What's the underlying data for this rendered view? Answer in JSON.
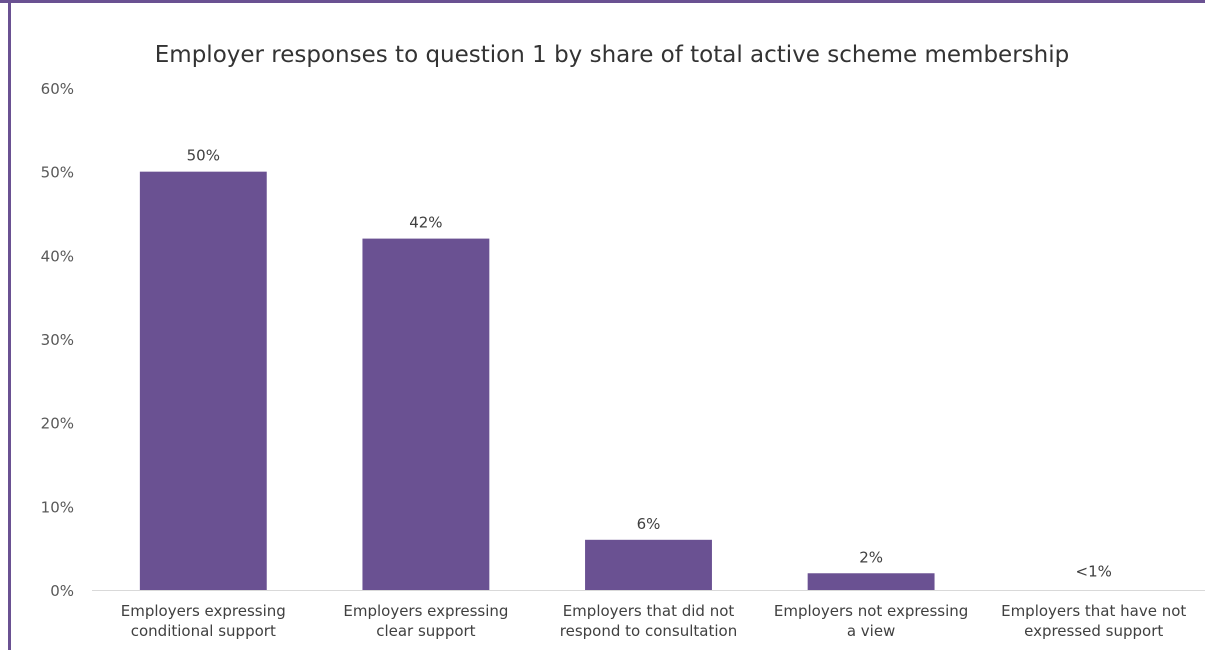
{
  "chart_data": {
    "type": "bar",
    "title": "Employer responses to question 1 by share of total active scheme membership",
    "categories": [
      [
        "Employers expressing",
        "conditional support"
      ],
      [
        "Employers expressing",
        "clear support"
      ],
      [
        "Employers that did not",
        "respond to consultation"
      ],
      [
        "Employers not expressing",
        "a view"
      ],
      [
        "Employers that have not",
        "expressed support"
      ]
    ],
    "values": [
      50,
      42,
      6,
      2,
      0.3
    ],
    "data_labels": [
      "50%",
      "42%",
      "6%",
      "2%",
      "<1%"
    ],
    "ylim": [
      0,
      60
    ],
    "yticks": [
      0,
      10,
      20,
      30,
      40,
      50,
      60
    ],
    "ytick_labels": [
      "0%",
      "10%",
      "20%",
      "30%",
      "40%",
      "50%",
      "60%"
    ],
    "xlabel": "",
    "ylabel": "",
    "grid": false,
    "bar_color": "#6a5192"
  }
}
